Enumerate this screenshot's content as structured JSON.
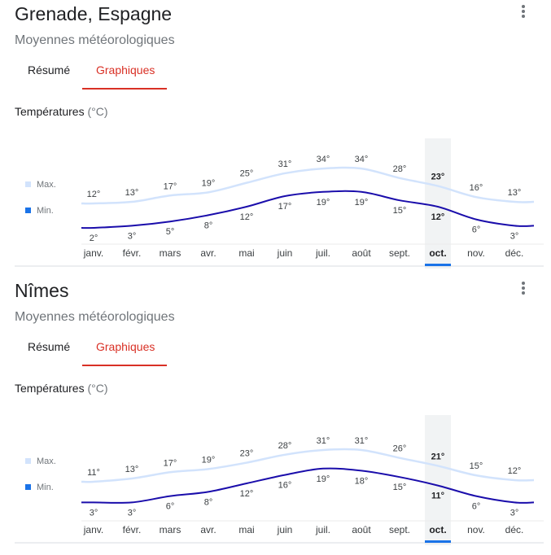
{
  "cards": [
    {
      "title": "Grenade, Espagne",
      "subtitle": "Moyennes météorologiques",
      "tabs": [
        "Résumé",
        "Graphiques"
      ],
      "active_tab": "Graphiques",
      "section_title": "Températures",
      "section_unit": "(°C)"
    },
    {
      "title": "Nîmes",
      "subtitle": "Moyennes météorologiques",
      "tabs": [
        "Résumé",
        "Graphiques"
      ],
      "active_tab": "Graphiques",
      "section_title": "Températures",
      "section_unit": "(°C)"
    }
  ],
  "colors": {
    "max_line": "#d2e3fc",
    "min_line": "#1a0dab",
    "min_legend": "#1a73e8",
    "highlight": "#1a73e8",
    "tab_active": "#d93025"
  },
  "chart_data": [
    {
      "type": "line",
      "categories": [
        "janv.",
        "févr.",
        "mars",
        "avr.",
        "mai",
        "juin",
        "juil.",
        "août",
        "sept.",
        "oct.",
        "nov.",
        "déc."
      ],
      "highlight_category": "oct.",
      "series": [
        {
          "name": "Max.",
          "values": [
            12,
            13,
            17,
            19,
            25,
            31,
            34,
            34,
            28,
            23,
            16,
            13
          ],
          "labels": [
            "12°",
            "13°",
            "17°",
            "19°",
            "25°",
            "31°",
            "34°",
            "34°",
            "28°",
            "23°",
            "16°",
            "13°"
          ]
        },
        {
          "name": "Min.",
          "values": [
            2,
            3,
            5,
            8,
            12,
            17,
            19,
            19,
            15,
            12,
            6,
            3
          ],
          "labels": [
            "2°",
            "3°",
            "5°",
            "8°",
            "12°",
            "17°",
            "19°",
            "19°",
            "15°",
            "12°",
            "6°",
            "3°"
          ]
        }
      ]
    },
    {
      "type": "line",
      "categories": [
        "janv.",
        "févr.",
        "mars",
        "avr.",
        "mai",
        "juin",
        "juil.",
        "août",
        "sept.",
        "oct.",
        "nov.",
        "déc."
      ],
      "highlight_category": "oct.",
      "series": [
        {
          "name": "Max.",
          "values": [
            11,
            13,
            17,
            19,
            23,
            28,
            31,
            31,
            26,
            21,
            15,
            12
          ],
          "labels": [
            "11°",
            "13°",
            "17°",
            "19°",
            "23°",
            "28°",
            "31°",
            "31°",
            "26°",
            "21°",
            "15°",
            "12°"
          ]
        },
        {
          "name": "Min.",
          "values": [
            3,
            3,
            6,
            8,
            12,
            16,
            19,
            18,
            15,
            11,
            6,
            3
          ],
          "labels": [
            "3°",
            "3°",
            "6°",
            "8°",
            "12°",
            "16°",
            "19°",
            "18°",
            "15°",
            "11°",
            "6°",
            "3°"
          ]
        }
      ]
    }
  ]
}
